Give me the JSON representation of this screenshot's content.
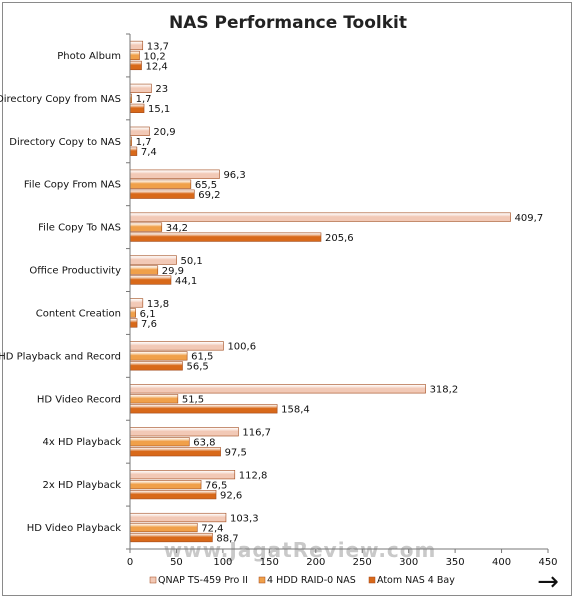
{
  "watermark": "www.JagatReview.com",
  "nav_arrow": "→",
  "chart_data": {
    "type": "bar",
    "orientation": "horizontal",
    "title": "NAS Performance Toolkit",
    "categories": [
      "Photo Album",
      "Directory Copy from NAS",
      "Directory Copy to NAS",
      "File Copy From NAS",
      "File Copy To NAS",
      "Office Productivity",
      "Content Creation",
      "HD Playback and Record",
      "HD Video Record",
      "4x HD Playback",
      "2x HD Playback",
      "HD Video Playback"
    ],
    "series": [
      {
        "name": "QNAP TS-459 Pro II",
        "color": "#f2c9b6",
        "values": [
          13.7,
          23,
          20.9,
          96.3,
          409.7,
          50.1,
          13.8,
          100.6,
          318.2,
          116.7,
          112.8,
          103.3
        ],
        "labels": [
          "13,7",
          "23",
          "20,9",
          "96,3",
          "409,7",
          "50,1",
          "13,8",
          "100,6",
          "318,2",
          "116,7",
          "112,8",
          "103,3"
        ]
      },
      {
        "name": "4 HDD RAID-0 NAS",
        "color": "#f0a04a",
        "values": [
          10.2,
          1.7,
          1.7,
          65.5,
          34.2,
          29.9,
          6.1,
          61.5,
          51.5,
          63.8,
          76.5,
          72.4
        ],
        "labels": [
          "10,2",
          "1,7",
          "1,7",
          "65,5",
          "34,2",
          "29,9",
          "6,1",
          "61,5",
          "51,5",
          "63,8",
          "76,5",
          "72,4"
        ]
      },
      {
        "name": "Atom NAS 4 Bay",
        "color": "#d8691a",
        "values": [
          12.4,
          15.1,
          7.4,
          69.2,
          205.6,
          44.1,
          7.6,
          56.5,
          158.4,
          97.5,
          92.6,
          88.7
        ],
        "labels": [
          "12,4",
          "15,1",
          "7,4",
          "69,2",
          "205,6",
          "44,1",
          "7,6",
          "56,5",
          "158,4",
          "97,5",
          "92,6",
          "88,7"
        ]
      }
    ],
    "xlim": [
      0,
      450
    ],
    "xticks": [
      0,
      50,
      100,
      150,
      200,
      250,
      300,
      350,
      400,
      450
    ],
    "grid": false,
    "legend": "bottom"
  }
}
